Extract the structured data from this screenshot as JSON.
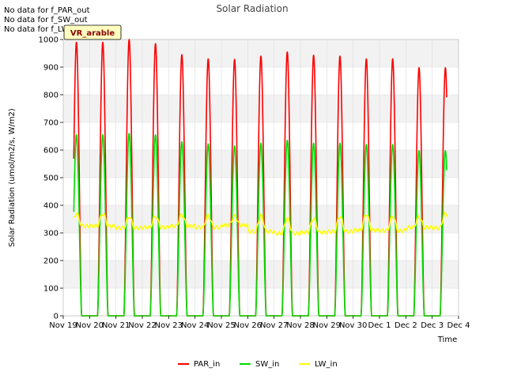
{
  "chart_data": {
    "type": "line",
    "title": "Solar Radiation",
    "xlabel": "Time",
    "ylabel": "Solar Radiation (umol/m2/s, W/m2)",
    "ylim": [
      0,
      1000
    ],
    "yticks": [
      0,
      100,
      200,
      300,
      400,
      500,
      600,
      700,
      800,
      900,
      1000
    ],
    "xlim": [
      0,
      15
    ],
    "x_tick_labels": [
      "Nov 19",
      "Nov 20",
      "Nov 21",
      "Nov 22",
      "Nov 23",
      "Nov 24",
      "Nov 25",
      "Nov 26",
      "Nov 27",
      "Nov 28",
      "Nov 29",
      "Nov 30",
      "Dec 1",
      "Dec 2",
      "Dec 3",
      "Dec 4"
    ],
    "legend_position": "bottom-center",
    "station_label": "VR_arable",
    "no_data_messages": [
      "No data for f_PAR_out",
      "No data for f_SW_out",
      "No data for f_LW_out"
    ],
    "series": [
      {
        "name": "PAR_in",
        "color": "#ff0000",
        "daily_peaks": [
          990,
          1000,
          985,
          945,
          930,
          928,
          940,
          955,
          943,
          940,
          930,
          930,
          898,
          898
        ]
      },
      {
        "name": "SW_in",
        "color": "#00dd00",
        "daily_peaks": [
          655,
          660,
          655,
          630,
          622,
          615,
          625,
          635,
          625,
          625,
          620,
          620,
          598,
          598
        ]
      },
      {
        "name": "LW_in",
        "color": "#ffff00",
        "daily_peaks": [
          370,
          358,
          360,
          365,
          362,
          360,
          362,
          352,
          352,
          360,
          368,
          360,
          358,
          370
        ],
        "night_values": [
          325,
          318,
          320,
          325,
          320,
          328,
          305,
          298,
          302,
          305,
          310,
          308,
          320,
          318
        ]
      }
    ],
    "day_start": 0.4,
    "day_end": 14.55
  }
}
